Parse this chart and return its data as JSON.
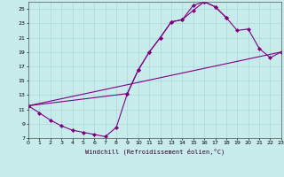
{
  "xlabel": "Windchill (Refroidissement éolien,°C)",
  "bg_color": "#c8ecec",
  "line_color": "#800080",
  "grid_color": "#a8d8d8",
  "xlim": [
    0,
    23
  ],
  "ylim": [
    7,
    26
  ],
  "xticks": [
    0,
    1,
    2,
    3,
    4,
    5,
    6,
    7,
    8,
    9,
    10,
    11,
    12,
    13,
    14,
    15,
    16,
    17,
    18,
    19,
    20,
    21,
    22,
    23
  ],
  "yticks": [
    7,
    9,
    11,
    13,
    15,
    17,
    19,
    21,
    23,
    25
  ],
  "line1_x": [
    0,
    1,
    2,
    3,
    4,
    5,
    6,
    7,
    8,
    9,
    10,
    11,
    12,
    13,
    14,
    15,
    16,
    17,
    18
  ],
  "line1_y": [
    11.5,
    10.5,
    9.5,
    8.7,
    8.1,
    7.8,
    7.5,
    7.2,
    8.5,
    13.2,
    16.5,
    19.0,
    21.0,
    23.2,
    23.5,
    25.5,
    26.0,
    25.3,
    23.8
  ],
  "line2_x": [
    0,
    9,
    10,
    11,
    12,
    13,
    14,
    15,
    16,
    17,
    18,
    19,
    20,
    21,
    22,
    23
  ],
  "line2_y": [
    11.5,
    13.2,
    16.5,
    19.0,
    21.0,
    23.2,
    23.5,
    24.8,
    26.0,
    25.3,
    23.8,
    22.0,
    22.2,
    19.5,
    18.2,
    19.0
  ],
  "line3_x": [
    0,
    23
  ],
  "line3_y": [
    11.5,
    19.0
  ]
}
